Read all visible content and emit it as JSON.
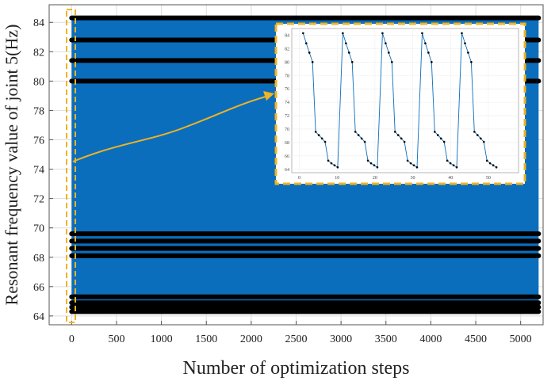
{
  "chart_data": {
    "type": "line",
    "xlabel": "Number of optimization steps",
    "ylabel": "Resonant frequency value of joint 5(Hz)",
    "xlim": [
      -250,
      5250
    ],
    "ylim": [
      63.4,
      85.2
    ],
    "x_ticks": [
      "0",
      "500",
      "1000",
      "1500",
      "2000",
      "2500",
      "3000",
      "3500",
      "4000",
      "4500",
      "5000"
    ],
    "y_ticks": [
      "64",
      "66",
      "68",
      "70",
      "72",
      "74",
      "76",
      "78",
      "80",
      "82",
      "84"
    ],
    "grid": true,
    "series": [
      {
        "x_range": [
          0,
          5200
        ],
        "color": "#0a6ebd",
        "marker_color": "#000000",
        "levels": [
          84.3,
          82.8,
          81.4,
          80.0,
          69.6,
          69.1,
          68.6,
          68.1,
          65.3,
          64.9,
          64.6,
          64.3
        ],
        "fill_range": [
          64.3,
          84.3
        ]
      }
    ],
    "inset": {
      "x_ticks": [
        "0",
        "10",
        "20",
        "30",
        "40",
        "50"
      ],
      "y_ticks": [
        "64",
        "66",
        "68",
        "70",
        "72",
        "74",
        "76",
        "78",
        "80",
        "82",
        "84"
      ],
      "xlim": [
        -2,
        58
      ],
      "ylim": [
        63.5,
        85
      ],
      "period": 10.5,
      "start": 1,
      "cycle_values": [
        84.3,
        82.8,
        81.4,
        80.0,
        69.6,
        69.1,
        68.6,
        68.1,
        65.3,
        64.9,
        64.6,
        64.3
      ],
      "cycles": 5
    },
    "annotation_color": "#f0b323"
  }
}
